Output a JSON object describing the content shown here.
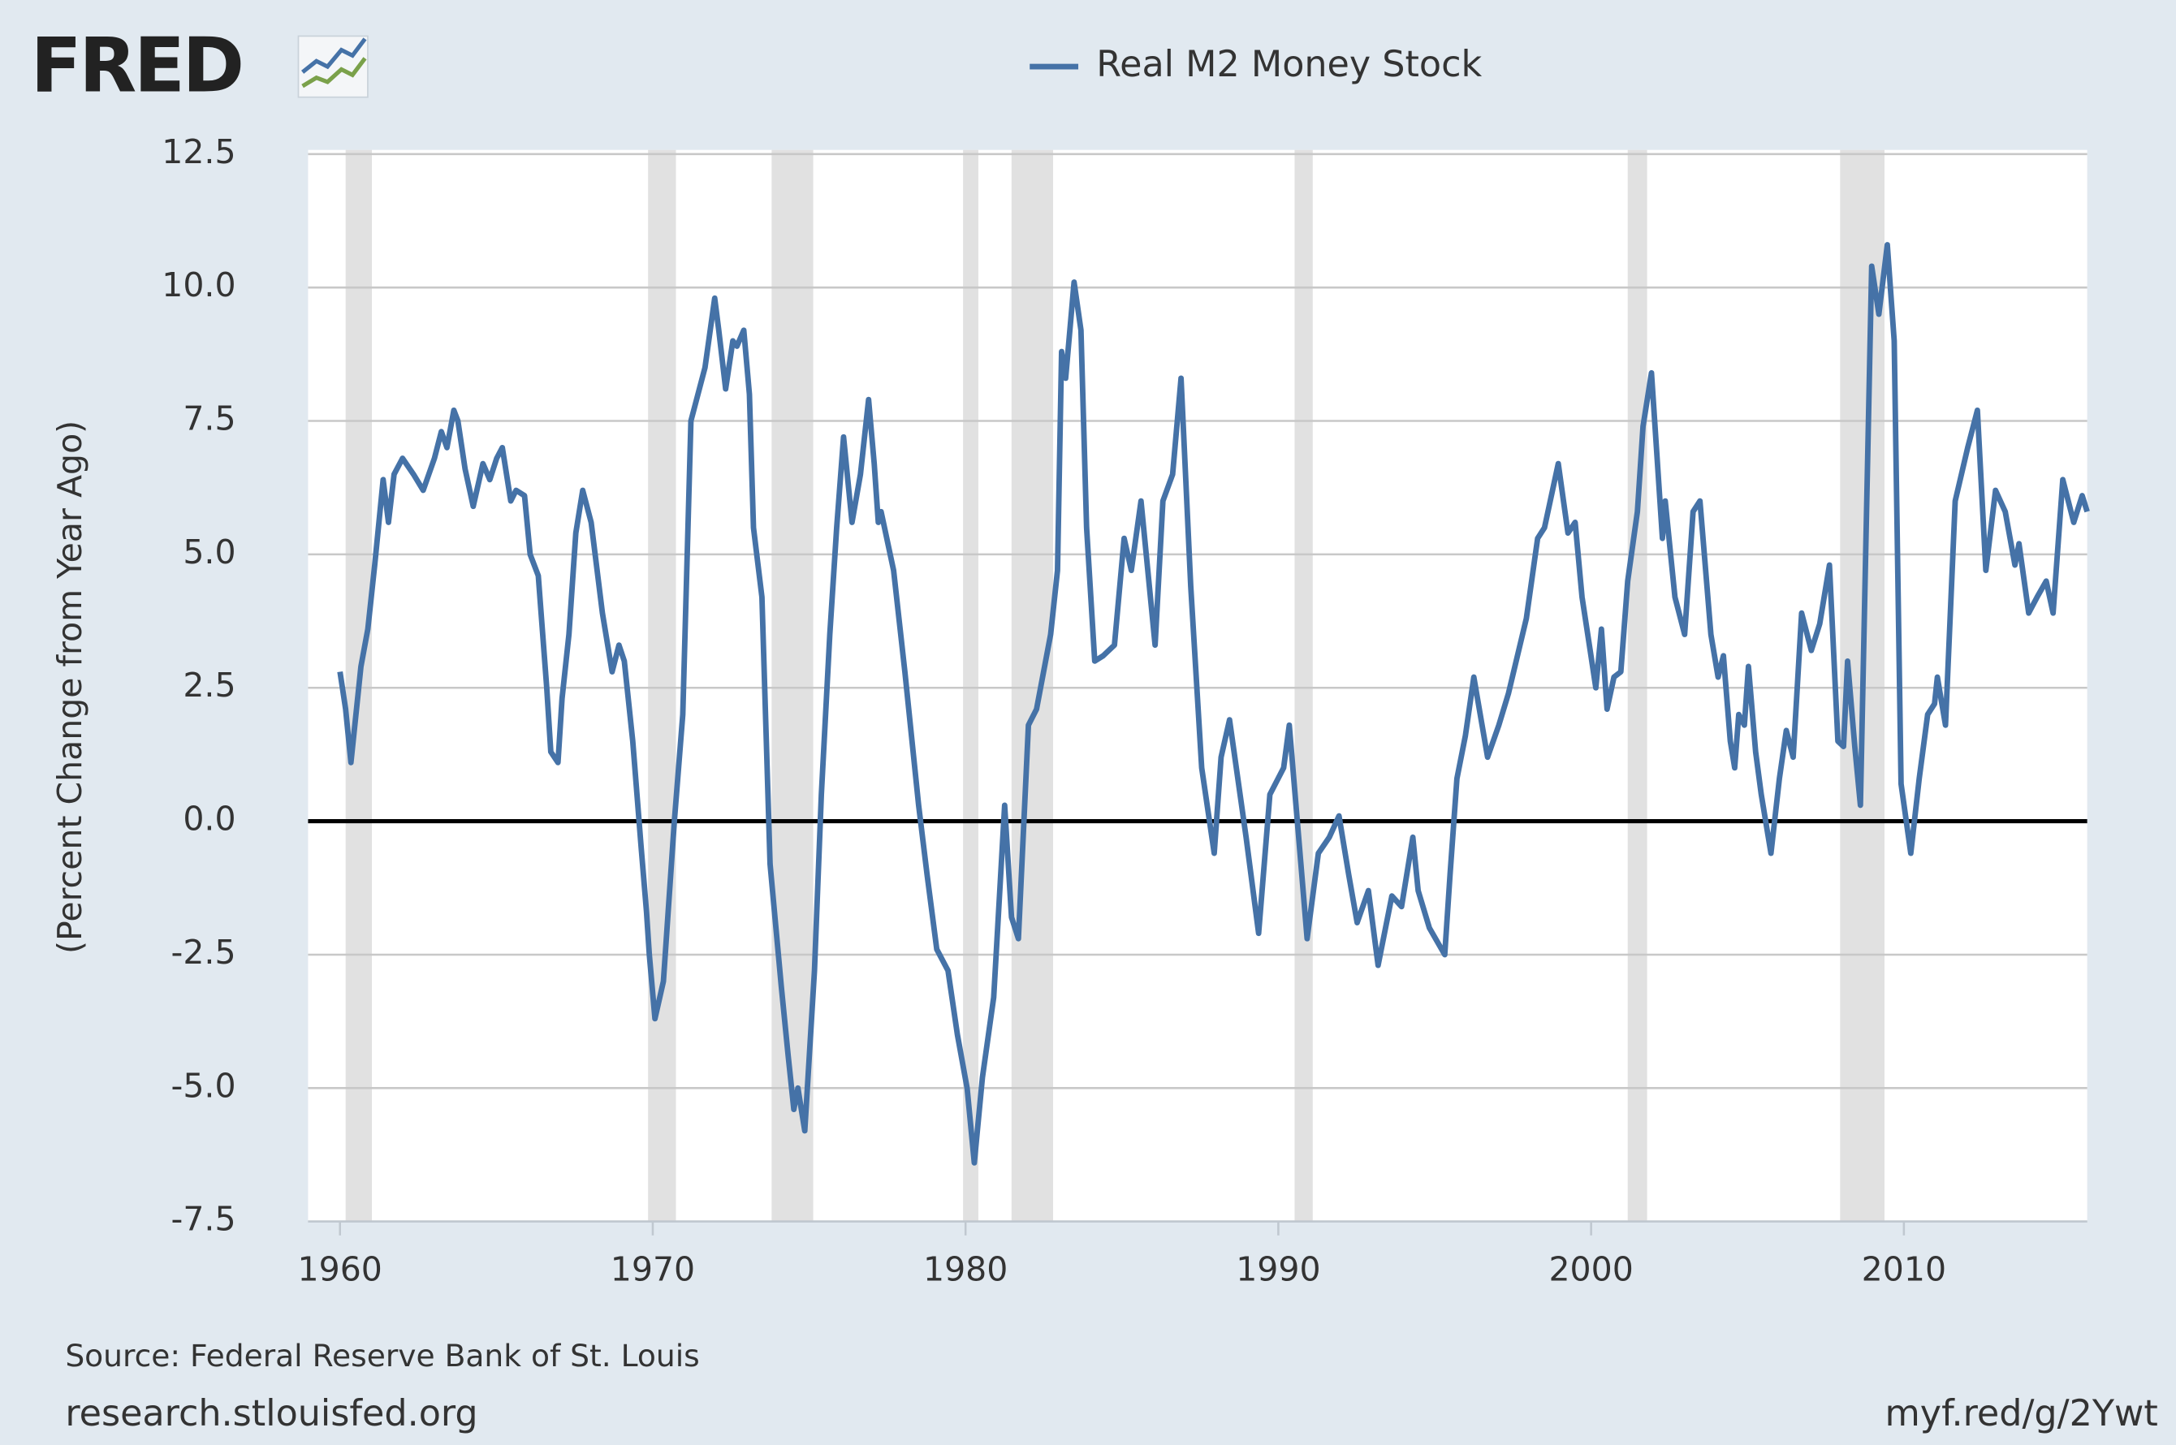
{
  "chart_data": {
    "type": "line",
    "logo": "FRED",
    "ylabel": "(Percent Change from Year Ago)",
    "source": "Source: Federal Reserve Bank of St. Louis",
    "site": "research.stlouisfed.org",
    "link": "myf.red/g/2Ywt",
    "x": [
      1960.0,
      1960.18,
      1960.35,
      1960.67,
      1960.89,
      1961.11,
      1961.38,
      1961.55,
      1961.73,
      1962.0,
      1962.35,
      1962.66,
      1963.02,
      1963.24,
      1963.42,
      1963.64,
      1963.77,
      1964.0,
      1964.26,
      1964.57,
      1964.79,
      1965.01,
      1965.19,
      1965.46,
      1965.63,
      1965.9,
      1966.08,
      1966.34,
      1966.61,
      1966.74,
      1966.97,
      1967.1,
      1967.32,
      1967.54,
      1967.76,
      1968.03,
      1968.39,
      1968.7,
      1968.92,
      1969.09,
      1969.36,
      1969.63,
      1969.8,
      1969.89,
      1970.07,
      1970.34,
      1970.69,
      1970.96,
      1971.22,
      1971.67,
      1971.98,
      1972.11,
      1972.33,
      1972.56,
      1972.69,
      1972.91,
      1973.09,
      1973.22,
      1973.49,
      1973.75,
      1974.11,
      1974.33,
      1974.51,
      1974.64,
      1974.86,
      1975.17,
      1975.39,
      1975.66,
      1975.88,
      1976.1,
      1976.37,
      1976.64,
      1976.9,
      1977.08,
      1977.21,
      1977.3,
      1977.7,
      1978.06,
      1978.5,
      1978.77,
      1979.08,
      1979.44,
      1979.74,
      1980.05,
      1980.28,
      1980.54,
      1980.9,
      1981.25,
      1981.47,
      1981.69,
      1982.01,
      1982.27,
      1982.72,
      1982.94,
      1983.07,
      1983.2,
      1983.47,
      1983.69,
      1983.87,
      1984.13,
      1984.4,
      1984.76,
      1985.07,
      1985.3,
      1985.61,
      1986.06,
      1986.31,
      1986.62,
      1986.89,
      1987.2,
      1987.55,
      1987.95,
      1988.17,
      1988.44,
      1988.97,
      1989.37,
      1989.73,
      1990.17,
      1990.35,
      1990.75,
      1990.92,
      1991.28,
      1991.63,
      1991.94,
      1992.25,
      1992.52,
      1992.88,
      1993.19,
      1993.63,
      1993.94,
      1994.3,
      1994.47,
      1994.83,
      1995.32,
      1995.49,
      1995.71,
      1995.98,
      1996.25,
      1996.69,
      1997.05,
      1997.36,
      1997.93,
      1998.29,
      1998.51,
      1998.95,
      1999.26,
      1999.49,
      1999.71,
      1999.97,
      2000.15,
      2000.33,
      2000.51,
      2000.73,
      2000.95,
      2001.17,
      2001.48,
      2001.66,
      2001.93,
      2002.28,
      2002.37,
      2002.68,
      2002.99,
      2003.26,
      2003.48,
      2003.83,
      2004.06,
      2004.23,
      2004.45,
      2004.59,
      2004.72,
      2004.9,
      2005.03,
      2005.26,
      2005.44,
      2005.75,
      2006.02,
      2006.24,
      2006.46,
      2006.73,
      2007.04,
      2007.31,
      2007.62,
      2007.89,
      2008.07,
      2008.2,
      2008.43,
      2008.61,
      2008.97,
      2009.2,
      2009.47,
      2009.69,
      2009.91,
      2010.22,
      2010.49,
      2010.76,
      2010.98,
      2011.07,
      2011.33,
      2011.64,
      2012.04,
      2012.35,
      2012.62,
      2012.93,
      2013.24,
      2013.55,
      2013.68,
      2013.99,
      2014.26,
      2014.55,
      2014.77,
      2015.08,
      2015.43,
      2015.7,
      2015.86
    ],
    "series": [
      {
        "name": "Real M2 Money Stock",
        "color": "#4572a7",
        "values": [
          2.8,
          2.1,
          1.1,
          2.9,
          3.6,
          4.8,
          6.4,
          5.6,
          6.5,
          6.8,
          6.5,
          6.2,
          6.8,
          7.3,
          7.0,
          7.7,
          7.5,
          6.6,
          5.9,
          6.7,
          6.4,
          6.8,
          7.0,
          6.0,
          6.2,
          6.1,
          5.0,
          4.6,
          2.5,
          1.3,
          1.1,
          2.3,
          3.5,
          5.4,
          6.2,
          5.6,
          3.9,
          2.8,
          3.3,
          3.0,
          1.5,
          -0.5,
          -1.7,
          -2.5,
          -3.7,
          -3.0,
          0.0,
          2.0,
          7.5,
          8.5,
          9.8,
          9.2,
          8.1,
          9.0,
          8.9,
          9.2,
          8.0,
          5.5,
          4.2,
          -0.8,
          -3.1,
          -4.4,
          -5.4,
          -5.0,
          -5.8,
          -2.8,
          0.5,
          3.5,
          5.5,
          7.2,
          5.6,
          6.5,
          7.9,
          6.7,
          5.6,
          5.8,
          4.7,
          2.8,
          0.3,
          -1.0,
          -2.4,
          -2.8,
          -4.0,
          -5.0,
          -6.4,
          -4.8,
          -3.3,
          0.3,
          -1.8,
          -2.2,
          1.8,
          2.1,
          3.5,
          4.7,
          8.8,
          8.3,
          10.1,
          9.2,
          5.5,
          3.0,
          3.1,
          3.3,
          5.3,
          4.7,
          6.0,
          3.3,
          6.0,
          6.5,
          8.3,
          4.4,
          1.0,
          -0.6,
          1.2,
          1.9,
          -0.3,
          -2.1,
          0.5,
          1.0,
          1.8,
          -1.0,
          -2.2,
          -0.6,
          -0.3,
          0.1,
          -1.0,
          -1.9,
          -1.3,
          -2.7,
          -1.4,
          -1.6,
          -0.3,
          -1.3,
          -2.0,
          -2.5,
          -1.0,
          0.8,
          1.6,
          2.7,
          1.2,
          1.8,
          2.4,
          3.8,
          5.3,
          5.5,
          6.7,
          5.4,
          5.6,
          4.2,
          3.2,
          2.5,
          3.6,
          2.1,
          2.7,
          2.8,
          4.5,
          5.8,
          7.4,
          8.4,
          5.3,
          6.0,
          4.2,
          3.5,
          5.8,
          6.0,
          3.5,
          2.7,
          3.1,
          1.5,
          1.0,
          2.0,
          1.8,
          2.9,
          1.3,
          0.5,
          -0.6,
          0.8,
          1.7,
          1.2,
          3.9,
          3.2,
          3.7,
          4.8,
          1.5,
          1.4,
          3.0,
          1.4,
          0.3,
          10.4,
          9.5,
          10.8,
          9.0,
          0.7,
          -0.6,
          0.8,
          2.0,
          2.2,
          2.7,
          1.8,
          6.0,
          7.0,
          7.7,
          4.7,
          6.2,
          5.8,
          4.8,
          5.2,
          3.9,
          4.2,
          4.5,
          3.9,
          6.4,
          5.6,
          6.1,
          5.8
        ]
      }
    ],
    "recessions": [
      [
        1960.18,
        1961.02
      ],
      [
        1969.85,
        1970.74
      ],
      [
        1973.8,
        1975.13
      ],
      [
        1979.92,
        1980.41
      ],
      [
        1981.47,
        1982.8
      ],
      [
        1990.52,
        1991.1
      ],
      [
        2001.17,
        2001.79
      ],
      [
        2007.96,
        2009.38
      ]
    ],
    "recession_color": "#e1e1e1",
    "xlim": [
      1958.98,
      2015.86
    ],
    "xticks": [
      1960,
      1970,
      1980,
      1990,
      2000,
      2010
    ],
    "ylim": [
      -7.5,
      12.5
    ],
    "yticks": [
      12.5,
      {
        "value": 10,
        "label": "10.0"
      },
      7.5,
      {
        "value": 5,
        "label": "5.0"
      },
      2.5,
      {
        "value": 0,
        "label": "0.0"
      },
      -2.5,
      {
        "value": -5,
        "label": "-5.0"
      },
      -7.5
    ],
    "grid": true,
    "zero_line": true,
    "legend": "top"
  }
}
